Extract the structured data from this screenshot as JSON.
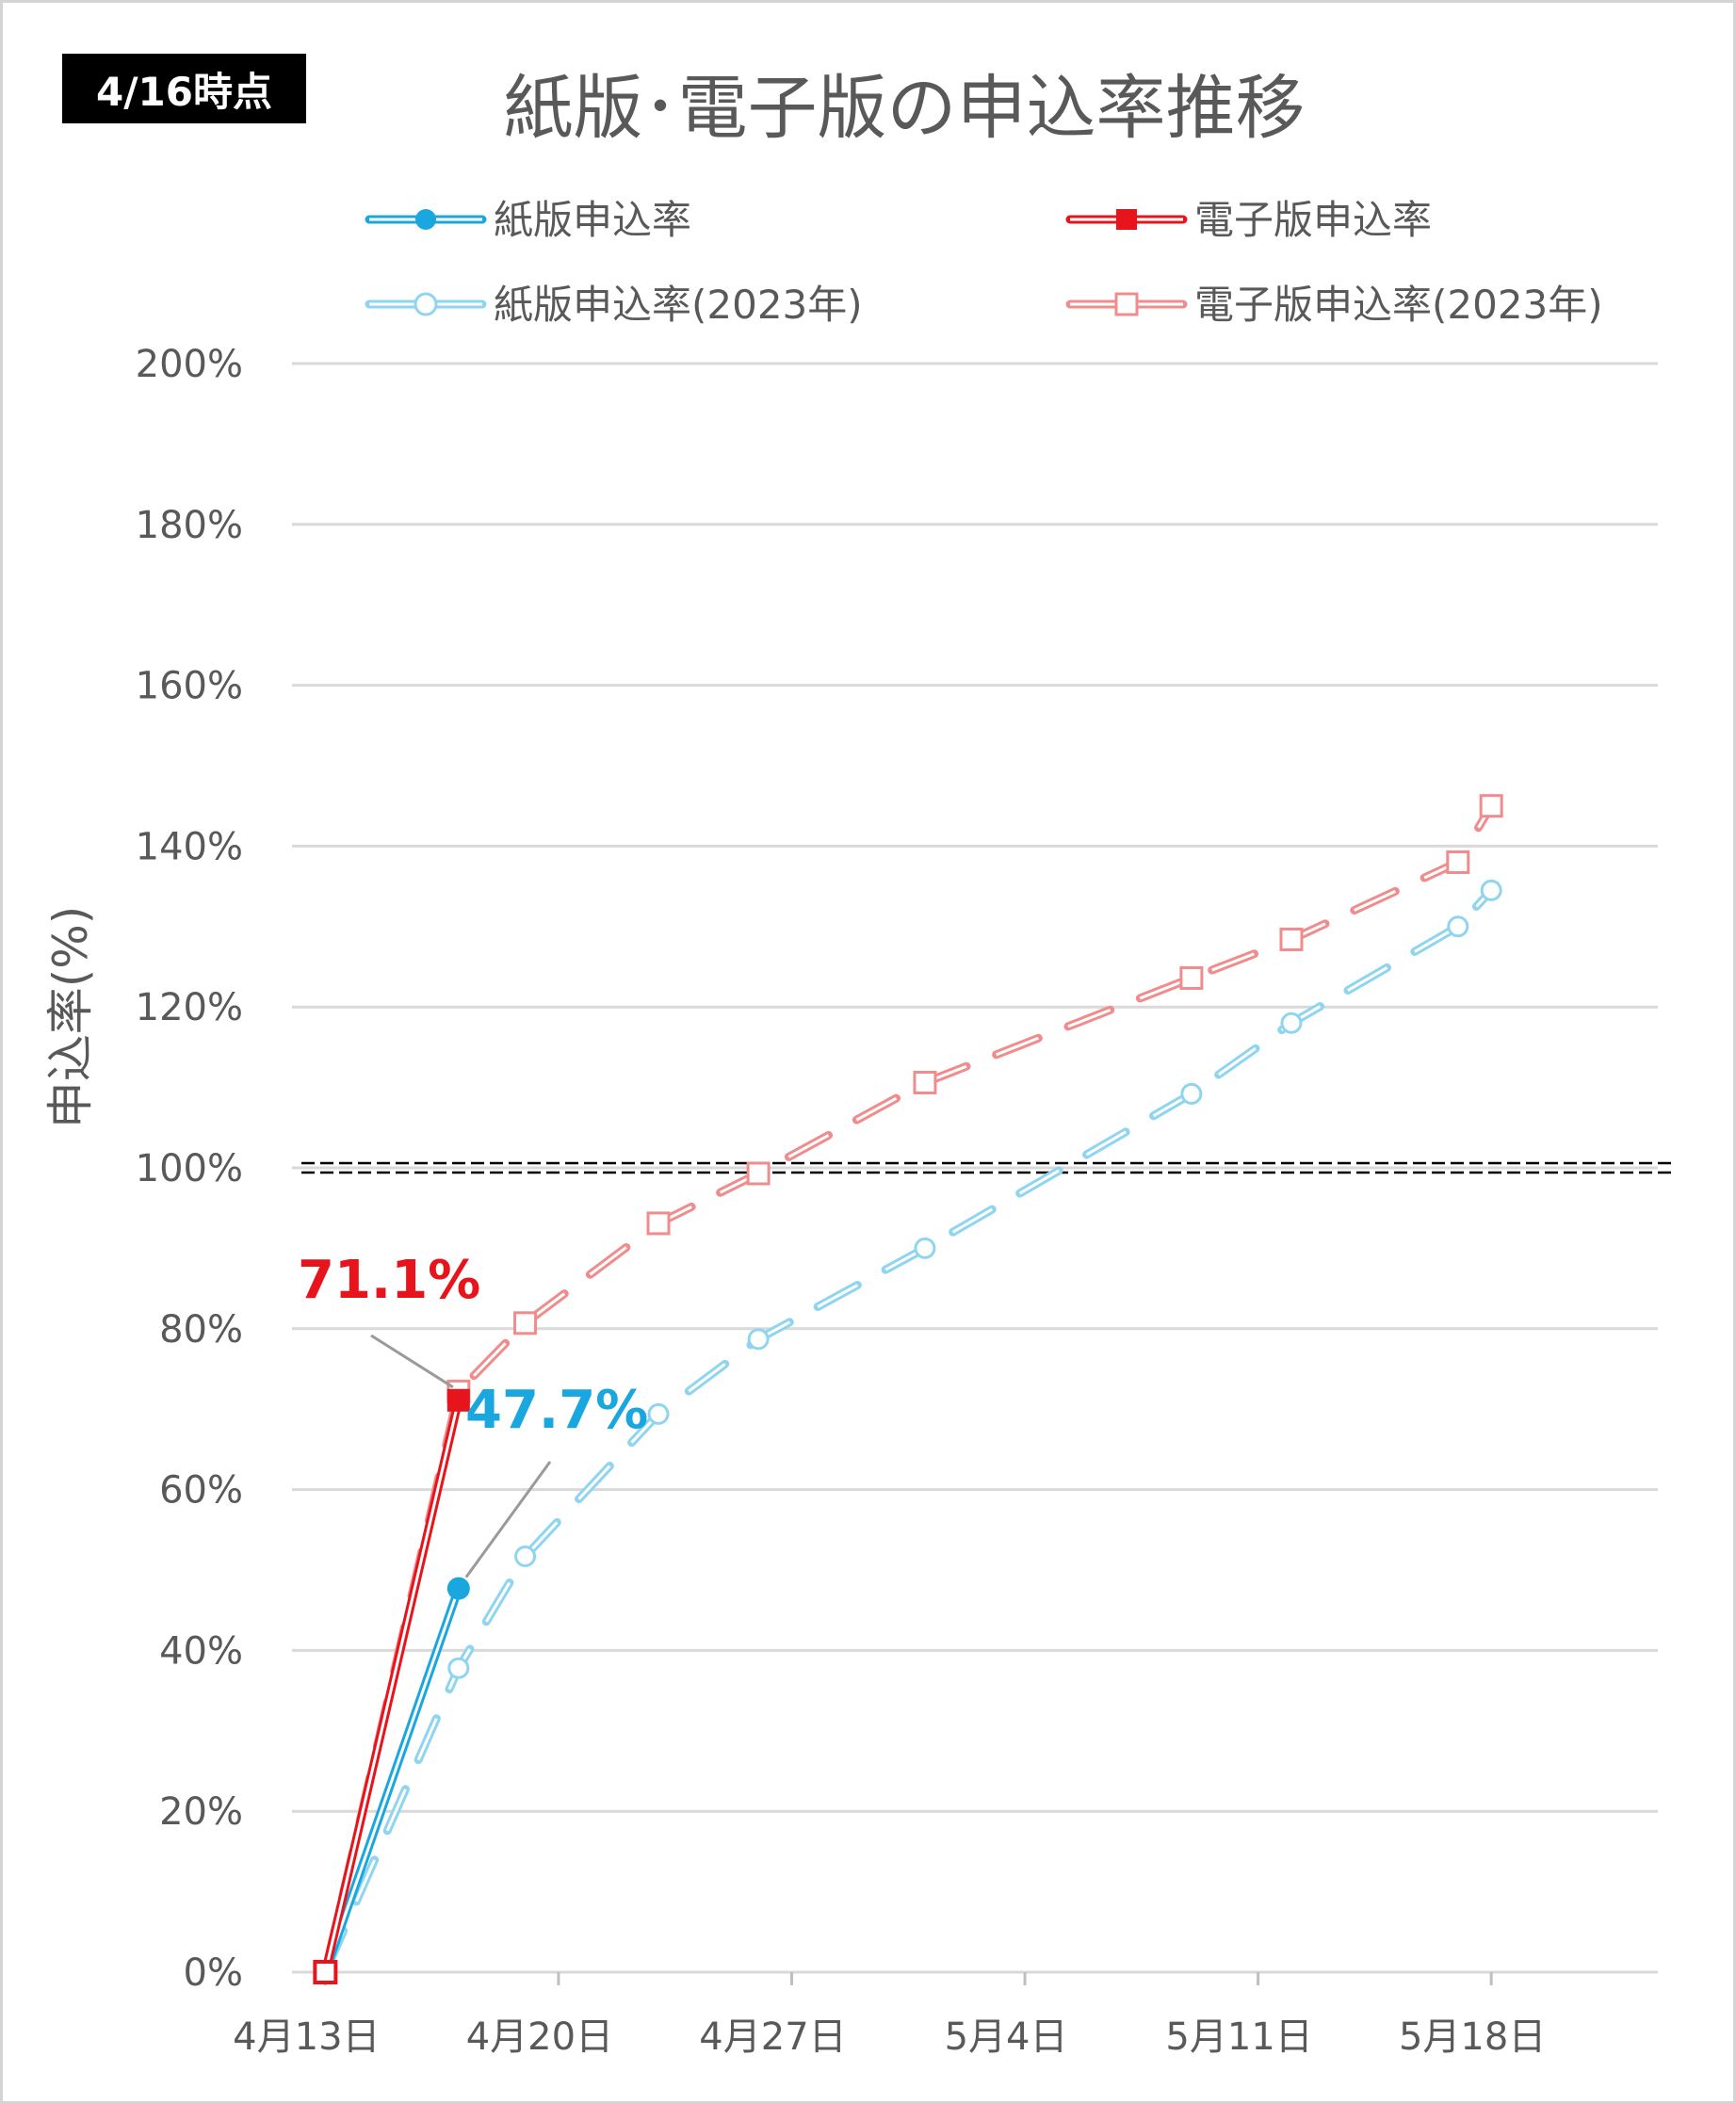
{
  "badge": "4/16時点",
  "chart_data": {
    "type": "line",
    "title": "紙版･電子版の申込率推移",
    "ylabel": "申込率(%)",
    "xlabel": "",
    "ylim": [
      0,
      200
    ],
    "yticks": [
      "0%",
      "20%",
      "40%",
      "60%",
      "80%",
      "100%",
      "120%",
      "140%",
      "160%",
      "180%",
      "200%"
    ],
    "ytick_values": [
      0,
      20,
      40,
      60,
      80,
      100,
      120,
      140,
      160,
      180,
      200
    ],
    "xticks": [
      "4月13日",
      "4月20日",
      "4月27日",
      "5月4日",
      "5月11日",
      "5月18日"
    ],
    "xtick_dates": [
      "2024-04-13",
      "2024-04-20",
      "2024-04-27",
      "2024-05-04",
      "2024-05-11",
      "2024-05-18"
    ],
    "xlim": [
      "2024-04-12",
      "2024-05-23"
    ],
    "reference_line": {
      "y": 100,
      "style": "double-dashed",
      "color": "#000000"
    },
    "grid": true,
    "legend": "top, two columns",
    "series": [
      {
        "name": "紙版申込率",
        "color": "#1aa7e0",
        "style": "solid",
        "marker": "filled-circle",
        "x": [
          "2024-04-13",
          "2024-04-17"
        ],
        "y": [
          0,
          47.7
        ]
      },
      {
        "name": "電子版申込率",
        "color": "#e8141c",
        "style": "solid",
        "marker": "filled-square",
        "x": [
          "2024-04-13",
          "2024-04-17"
        ],
        "y": [
          0,
          71.1
        ]
      },
      {
        "name": "紙版申込率(2023年)",
        "color": "#8fd5f0",
        "style": "dashed",
        "marker": "open-circle",
        "x": [
          "2024-04-13",
          "2024-04-17",
          "2024-04-19",
          "2024-04-23",
          "2024-04-26",
          "2024-05-01",
          "2024-05-09",
          "2024-05-12",
          "2024-05-17",
          "2024-05-18"
        ],
        "y": [
          0,
          37.8,
          51.7,
          69.4,
          78.7,
          90.0,
          109.2,
          118.0,
          130.0,
          134.5
        ]
      },
      {
        "name": "電子版申込率(2023年)",
        "color": "#f08c8c",
        "style": "dashed",
        "marker": "open-square",
        "x": [
          "2024-04-13",
          "2024-04-17",
          "2024-04-19",
          "2024-04-23",
          "2024-04-26",
          "2024-05-01",
          "2024-05-09",
          "2024-05-12",
          "2024-05-17",
          "2024-05-18"
        ],
        "y": [
          0,
          72.2,
          80.7,
          93.1,
          99.3,
          110.6,
          123.6,
          128.4,
          138.0,
          145.0
        ]
      }
    ],
    "annotations": [
      {
        "text": "71.1%",
        "series": "電子版申込率",
        "color": "#e8141c"
      },
      {
        "text": "47.7%",
        "series": "紙版申込率",
        "color": "#1aa7e0"
      }
    ]
  }
}
